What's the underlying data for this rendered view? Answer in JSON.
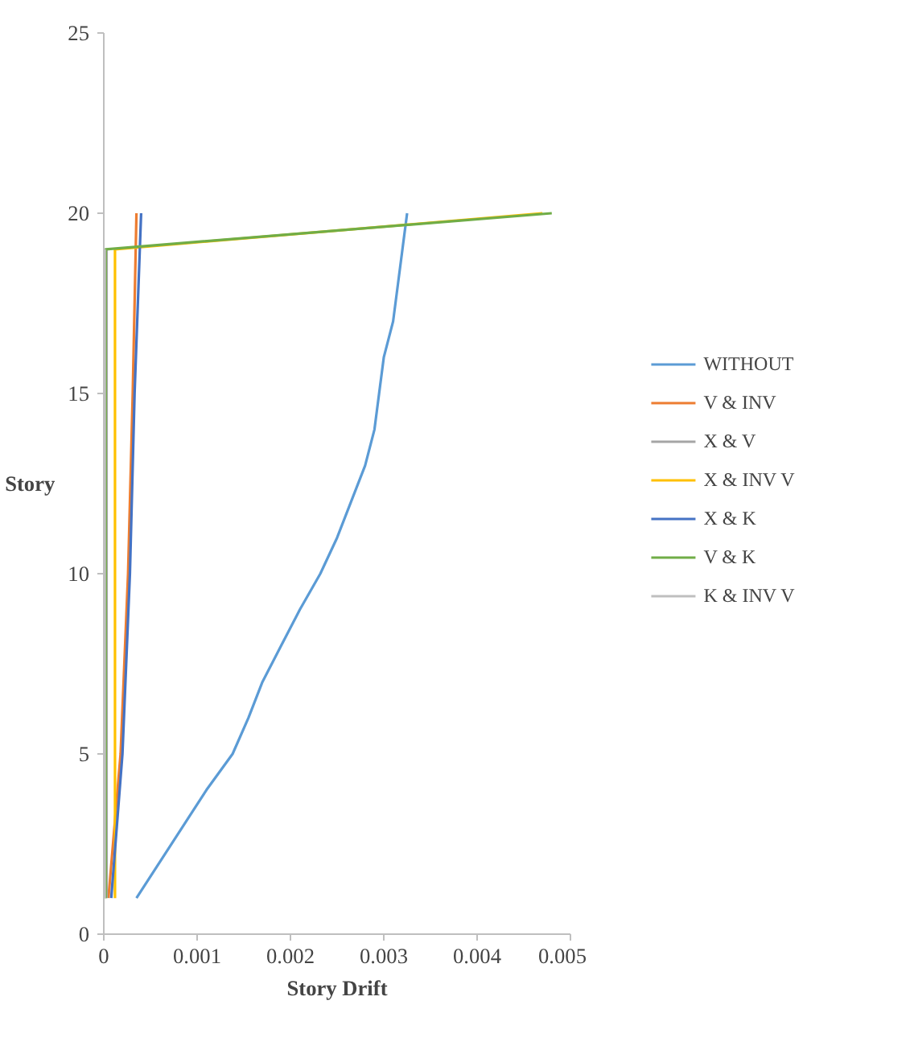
{
  "chart_data": {
    "type": "line",
    "xlabel": "Story Drift",
    "ylabel": "Story",
    "xlim": [
      0,
      0.005
    ],
    "xticks": [
      0,
      0.001,
      0.002,
      0.003,
      0.004,
      0.005
    ],
    "ylim": [
      0,
      25
    ],
    "yticks": [
      0,
      5,
      10,
      15,
      20,
      25
    ],
    "grid": false,
    "legend": "right",
    "marker": "none",
    "line_style": "solid",
    "series": [
      {
        "name": "WITHOUT",
        "color": "#5b9bd5",
        "x": [
          0.00035,
          0.0006,
          0.00085,
          0.0011,
          0.00138,
          0.00155,
          0.0017,
          0.0019,
          0.0021,
          0.00232,
          0.0025,
          0.00265,
          0.0028,
          0.0029,
          0.00295,
          0.003,
          0.0031,
          0.00315,
          0.0032,
          0.00325
        ],
        "values": [
          1,
          2,
          3,
          4,
          5,
          6,
          7,
          8,
          9,
          10,
          11,
          12,
          13,
          14,
          15,
          16,
          17,
          18,
          19,
          20
        ]
      },
      {
        "name": "V & INV",
        "color": "#ed7d31",
        "x": [
          5e-05,
          0.00018,
          0.00026,
          0.00031,
          0.00035
        ],
        "values": [
          1,
          5,
          10,
          15,
          20
        ]
      },
      {
        "name": "X & V",
        "color": "#a5a5a5",
        "x": [
          3e-05,
          3e-05,
          3e-05,
          3e-05,
          3e-05
        ],
        "values": [
          1,
          5,
          10,
          15,
          19
        ]
      },
      {
        "name": "X & INV V",
        "color": "#ffc000",
        "x": [
          0.00012,
          0.00012,
          0.00012,
          0.00012,
          0.00012,
          0.0047
        ],
        "values": [
          1,
          5,
          10,
          15,
          19,
          20
        ]
      },
      {
        "name": "X & K",
        "color": "#4472c4",
        "x": [
          8e-05,
          0.0002,
          0.00028,
          0.00033,
          0.0004
        ],
        "values": [
          1,
          5,
          10,
          15,
          20
        ]
      },
      {
        "name": "V & K",
        "color": "#70ad47",
        "x": [
          2e-05,
          2e-05,
          2e-05,
          2e-05,
          2e-05,
          0.0048
        ],
        "values": [
          1,
          5,
          10,
          15,
          19,
          20
        ]
      },
      {
        "name": "K & INV V",
        "color": "#bfbfbf",
        "x": [
          1e-05,
          1e-05,
          1e-05,
          1e-05,
          1e-05
        ],
        "values": [
          1,
          5,
          10,
          15,
          19
        ]
      }
    ]
  }
}
